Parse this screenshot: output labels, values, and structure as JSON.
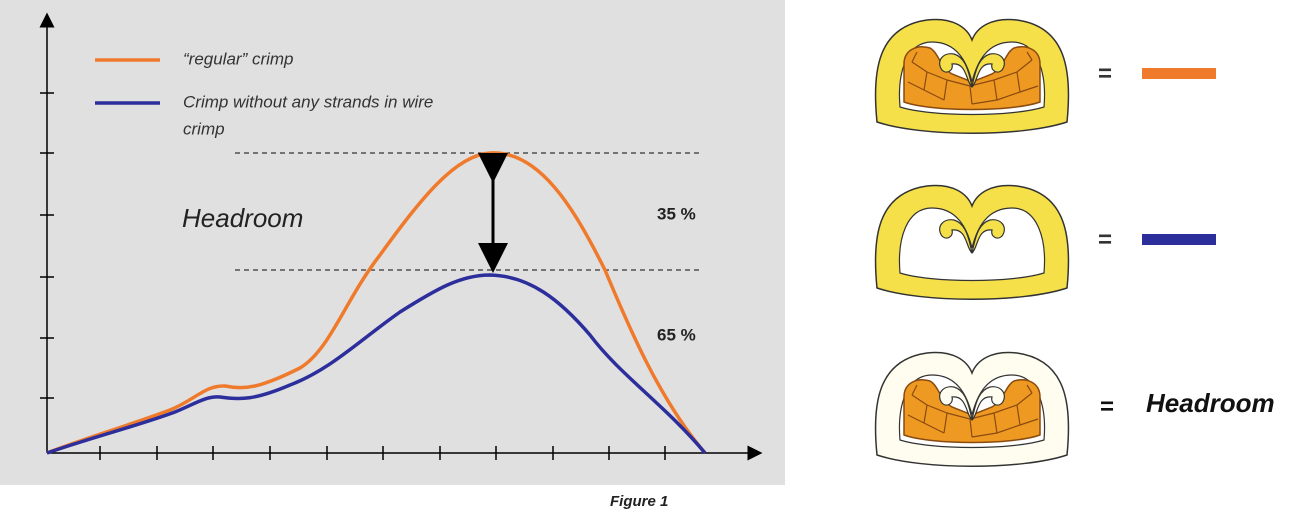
{
  "legend": [
    {
      "label": "“regular” crimp",
      "color": "#f07a2c"
    },
    {
      "label": [
        "Crimp without any strands in wire",
        "crimp"
      ],
      "color": "#2c2e9c"
    }
  ],
  "annotations": {
    "headroom": "Headroom",
    "upper_percent": "35 %",
    "lower_percent": "65 %"
  },
  "caption": "Figure 1",
  "key": [
    {
      "equals": "="
    },
    {
      "equals": "="
    },
    {
      "equals": "=",
      "label": "Headroom"
    }
  ]
}
